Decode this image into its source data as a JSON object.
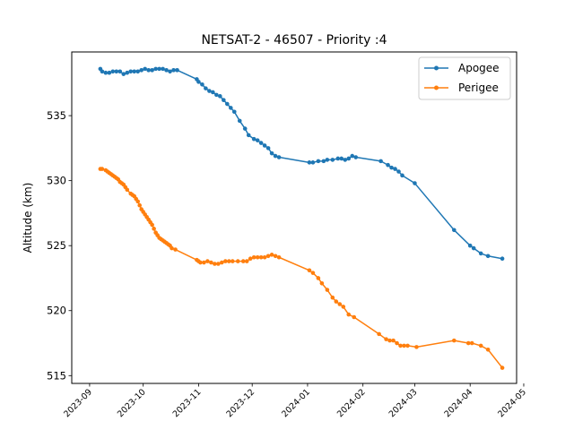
{
  "chart_data": {
    "type": "line",
    "title": "NETSAT-2 - 46507 - Priority :4",
    "xlabel": "",
    "ylabel": "Altitude (km)",
    "x_ticks": [
      "2023-09",
      "2023-10",
      "2023-11",
      "2023-12",
      "2024-01",
      "2024-02",
      "2024-03",
      "2024-04",
      "2024-05"
    ],
    "y_ticks": [
      515,
      520,
      525,
      530,
      535
    ],
    "xlim": [
      "2023-08-22",
      "2024-04-27"
    ],
    "ylim": [
      514.4,
      539.9
    ],
    "grid": false,
    "legend_position": "top-right",
    "series": [
      {
        "name": "Apogee",
        "color": "#1f77b4",
        "points": [
          [
            "2023-09-07",
            538.6
          ],
          [
            "2023-09-08",
            538.4
          ],
          [
            "2023-09-10",
            538.3
          ],
          [
            "2023-09-12",
            538.3
          ],
          [
            "2023-09-14",
            538.4
          ],
          [
            "2023-09-16",
            538.4
          ],
          [
            "2023-09-18",
            538.4
          ],
          [
            "2023-09-20",
            538.2
          ],
          [
            "2023-09-22",
            538.3
          ],
          [
            "2023-09-24",
            538.4
          ],
          [
            "2023-09-26",
            538.4
          ],
          [
            "2023-09-28",
            538.4
          ],
          [
            "2023-09-30",
            538.5
          ],
          [
            "2023-10-02",
            538.6
          ],
          [
            "2023-10-04",
            538.5
          ],
          [
            "2023-10-06",
            538.5
          ],
          [
            "2023-10-08",
            538.6
          ],
          [
            "2023-10-10",
            538.6
          ],
          [
            "2023-10-12",
            538.6
          ],
          [
            "2023-10-14",
            538.5
          ],
          [
            "2023-10-16",
            538.4
          ],
          [
            "2023-10-18",
            538.5
          ],
          [
            "2023-10-20",
            538.5
          ],
          [
            "2023-10-31",
            537.8
          ],
          [
            "2023-11-01",
            537.6
          ],
          [
            "2023-11-03",
            537.4
          ],
          [
            "2023-11-05",
            537.1
          ],
          [
            "2023-11-07",
            536.9
          ],
          [
            "2023-11-09",
            536.8
          ],
          [
            "2023-11-11",
            536.6
          ],
          [
            "2023-11-13",
            536.5
          ],
          [
            "2023-11-15",
            536.2
          ],
          [
            "2023-11-17",
            535.9
          ],
          [
            "2023-11-19",
            535.6
          ],
          [
            "2023-11-21",
            535.3
          ],
          [
            "2023-11-24",
            534.6
          ],
          [
            "2023-11-27",
            534.0
          ],
          [
            "2023-11-29",
            533.5
          ],
          [
            "2023-12-02",
            533.2
          ],
          [
            "2023-12-04",
            533.1
          ],
          [
            "2023-12-06",
            532.9
          ],
          [
            "2023-12-08",
            532.7
          ],
          [
            "2023-12-10",
            532.5
          ],
          [
            "2023-12-12",
            532.1
          ],
          [
            "2023-12-14",
            531.9
          ],
          [
            "2023-12-16",
            531.8
          ],
          [
            "2024-01-02",
            531.4
          ],
          [
            "2024-01-04",
            531.4
          ],
          [
            "2024-01-07",
            531.5
          ],
          [
            "2024-01-10",
            531.5
          ],
          [
            "2024-01-12",
            531.6
          ],
          [
            "2024-01-15",
            531.6
          ],
          [
            "2024-01-18",
            531.7
          ],
          [
            "2024-01-20",
            531.7
          ],
          [
            "2024-01-22",
            531.6
          ],
          [
            "2024-01-24",
            531.7
          ],
          [
            "2024-01-26",
            531.9
          ],
          [
            "2024-01-28",
            531.8
          ],
          [
            "2024-02-11",
            531.5
          ],
          [
            "2024-02-15",
            531.2
          ],
          [
            "2024-02-17",
            531.0
          ],
          [
            "2024-02-19",
            530.9
          ],
          [
            "2024-02-21",
            530.7
          ],
          [
            "2024-02-23",
            530.4
          ],
          [
            "2024-03-01",
            529.8
          ],
          [
            "2024-03-23",
            526.2
          ],
          [
            "2024-04-01",
            525.0
          ],
          [
            "2024-04-03",
            524.8
          ],
          [
            "2024-04-07",
            524.4
          ],
          [
            "2024-04-11",
            524.2
          ],
          [
            "2024-04-19",
            524.0
          ]
        ]
      },
      {
        "name": "Perigee",
        "color": "#ff7f0e",
        "points": [
          [
            "2023-09-07",
            530.9
          ],
          [
            "2023-09-08",
            530.9
          ],
          [
            "2023-09-10",
            530.8
          ],
          [
            "2023-09-11",
            530.7
          ],
          [
            "2023-09-12",
            530.6
          ],
          [
            "2023-09-13",
            530.5
          ],
          [
            "2023-09-14",
            530.4
          ],
          [
            "2023-09-15",
            530.3
          ],
          [
            "2023-09-16",
            530.2
          ],
          [
            "2023-09-17",
            530.1
          ],
          [
            "2023-09-18",
            529.9
          ],
          [
            "2023-09-19",
            529.8
          ],
          [
            "2023-09-20",
            529.7
          ],
          [
            "2023-09-21",
            529.5
          ],
          [
            "2023-09-22",
            529.3
          ],
          [
            "2023-09-24",
            529.0
          ],
          [
            "2023-09-25",
            528.9
          ],
          [
            "2023-09-26",
            528.8
          ],
          [
            "2023-09-27",
            528.6
          ],
          [
            "2023-09-28",
            528.4
          ],
          [
            "2023-09-29",
            528.1
          ],
          [
            "2023-09-30",
            527.8
          ],
          [
            "2023-10-01",
            527.6
          ],
          [
            "2023-10-02",
            527.4
          ],
          [
            "2023-10-03",
            527.2
          ],
          [
            "2023-10-04",
            527.0
          ],
          [
            "2023-10-05",
            526.8
          ],
          [
            "2023-10-06",
            526.6
          ],
          [
            "2023-10-07",
            526.3
          ],
          [
            "2023-10-08",
            526.0
          ],
          [
            "2023-10-09",
            525.8
          ],
          [
            "2023-10-10",
            525.6
          ],
          [
            "2023-10-11",
            525.5
          ],
          [
            "2023-10-12",
            525.4
          ],
          [
            "2023-10-13",
            525.3
          ],
          [
            "2023-10-14",
            525.2
          ],
          [
            "2023-10-15",
            525.1
          ],
          [
            "2023-10-16",
            525.0
          ],
          [
            "2023-10-17",
            524.8
          ],
          [
            "2023-10-19",
            524.7
          ],
          [
            "2023-10-31",
            523.9
          ],
          [
            "2023-11-01",
            523.8
          ],
          [
            "2023-11-02",
            523.7
          ],
          [
            "2023-11-04",
            523.7
          ],
          [
            "2023-11-06",
            523.8
          ],
          [
            "2023-11-08",
            523.7
          ],
          [
            "2023-11-10",
            523.6
          ],
          [
            "2023-11-12",
            523.6
          ],
          [
            "2023-11-14",
            523.7
          ],
          [
            "2023-11-16",
            523.8
          ],
          [
            "2023-11-18",
            523.8
          ],
          [
            "2023-11-20",
            523.8
          ],
          [
            "2023-11-23",
            523.8
          ],
          [
            "2023-11-26",
            523.8
          ],
          [
            "2023-11-28",
            523.8
          ],
          [
            "2023-11-30",
            524.0
          ],
          [
            "2023-12-02",
            524.1
          ],
          [
            "2023-12-04",
            524.1
          ],
          [
            "2023-12-06",
            524.1
          ],
          [
            "2023-12-08",
            524.1
          ],
          [
            "2023-12-10",
            524.2
          ],
          [
            "2023-12-12",
            524.3
          ],
          [
            "2023-12-14",
            524.2
          ],
          [
            "2023-12-16",
            524.1
          ],
          [
            "2024-01-02",
            523.1
          ],
          [
            "2024-01-04",
            522.9
          ],
          [
            "2024-01-07",
            522.5
          ],
          [
            "2024-01-09",
            522.1
          ],
          [
            "2024-01-12",
            521.6
          ],
          [
            "2024-01-15",
            521.0
          ],
          [
            "2024-01-17",
            520.7
          ],
          [
            "2024-01-19",
            520.5
          ],
          [
            "2024-01-21",
            520.3
          ],
          [
            "2024-01-24",
            519.7
          ],
          [
            "2024-01-27",
            519.5
          ],
          [
            "2024-02-10",
            518.2
          ],
          [
            "2024-02-14",
            517.8
          ],
          [
            "2024-02-16",
            517.7
          ],
          [
            "2024-02-18",
            517.7
          ],
          [
            "2024-02-20",
            517.5
          ],
          [
            "2024-02-22",
            517.3
          ],
          [
            "2024-02-24",
            517.3
          ],
          [
            "2024-02-26",
            517.3
          ],
          [
            "2024-03-02",
            517.2
          ],
          [
            "2024-03-23",
            517.7
          ],
          [
            "2024-03-31",
            517.5
          ],
          [
            "2024-04-02",
            517.5
          ],
          [
            "2024-04-07",
            517.3
          ],
          [
            "2024-04-11",
            517.0
          ],
          [
            "2024-04-19",
            515.6
          ]
        ]
      }
    ]
  }
}
